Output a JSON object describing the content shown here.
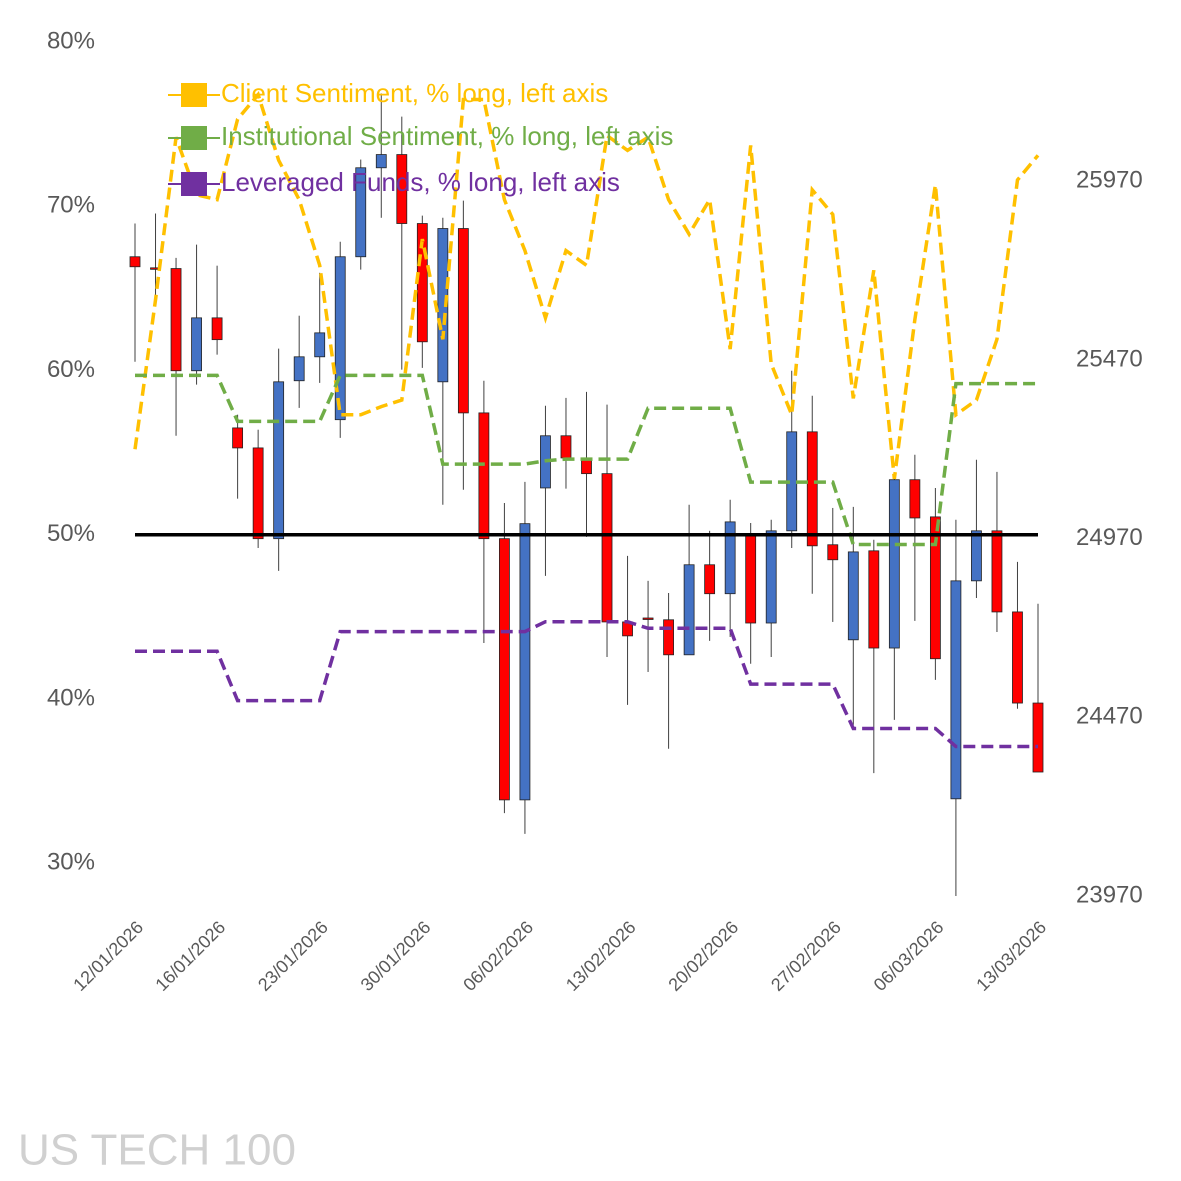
{
  "chart_data": {
    "type": "candlestick",
    "watermark": "US TECH 100",
    "categories": [
      "12/01/2026",
      null,
      null,
      null,
      "16/01/2026",
      null,
      null,
      null,
      null,
      "23/01/2026",
      null,
      null,
      null,
      null,
      "30/01/2026",
      null,
      null,
      null,
      null,
      "06/02/2026",
      null,
      null,
      null,
      null,
      "13/02/2026",
      null,
      null,
      null,
      null,
      "20/02/2026",
      null,
      null,
      null,
      null,
      "27/02/2026",
      null,
      null,
      null,
      null,
      "06/03/2026",
      null,
      null,
      null,
      null,
      "13/03/2026"
    ],
    "candles": {
      "axis": "y2",
      "up_color": "#4472c4",
      "down_color": "#ff0000",
      "open": [
        25759,
        25728,
        25726,
        25440,
        25588,
        25280,
        25224,
        24970,
        25412,
        25479,
        25303,
        25759,
        26008,
        26045,
        25852,
        25409,
        25838,
        25322,
        24970,
        24239,
        25112,
        25258,
        25191,
        25152,
        24737,
        24748,
        24743,
        24645,
        24897,
        24816,
        24981,
        24734,
        24992,
        25269,
        24953,
        24687,
        24936,
        24664,
        25135,
        25031,
        24242,
        24852,
        24992,
        24765,
        24510
      ],
      "high": [
        25852,
        25880,
        25756,
        25793,
        25734,
        25317,
        25275,
        25502,
        25594,
        25714,
        25801,
        26031,
        26216,
        26151,
        25874,
        25868,
        25916,
        25412,
        25070,
        25129,
        25342,
        25364,
        25381,
        25345,
        24922,
        24852,
        24818,
        25065,
        24992,
        25079,
        25014,
        25023,
        25440,
        25370,
        25056,
        25059,
        24967,
        25146,
        25205,
        25112,
        25023,
        25191,
        25157,
        24905,
        24788
      ],
      "low": [
        25465,
        25639,
        25258,
        25401,
        25485,
        25082,
        24944,
        24880,
        25336,
        25406,
        25252,
        25723,
        25868,
        25443,
        25448,
        25065,
        25107,
        24678,
        24202,
        24144,
        24866,
        25110,
        24975,
        24639,
        24505,
        24597,
        24382,
        24645,
        24684,
        24695,
        24620,
        24639,
        24944,
        24816,
        24737,
        24449,
        24314,
        24463,
        24740,
        24575,
        23970,
        24804,
        24709,
        24494,
        24317
      ],
      "close": [
        25731,
        25726,
        25440,
        25588,
        25527,
        25224,
        24970,
        25409,
        25479,
        25546,
        25759,
        26008,
        26045,
        25852,
        25521,
        25838,
        25322,
        24970,
        24239,
        25012,
        25258,
        25196,
        25152,
        24737,
        24698,
        24746,
        24645,
        24897,
        24816,
        25017,
        24734,
        24992,
        25269,
        24950,
        24911,
        24933,
        24664,
        25135,
        25028,
        24634,
        24852,
        24992,
        24765,
        24510,
        24317
      ]
    },
    "series": [
      {
        "name": "Client Sentiment, % long, left axis",
        "color": "#ffc000",
        "axis": "y",
        "values": [
          55.2,
          64.3,
          74.2,
          70.7,
          70.4,
          75.3,
          76.8,
          72.8,
          70.4,
          66.4,
          57.3,
          57.3,
          57.8,
          58.2,
          68.0,
          61.9,
          76.5,
          76.5,
          70.4,
          67.3,
          63.2,
          67.3,
          66.4,
          74.3,
          73.4,
          74.2,
          70.4,
          68.3,
          70.4,
          61.3,
          73.7,
          60.4,
          57.3,
          71.0,
          69.5,
          58.3,
          66.1,
          53.4,
          63.1,
          71.3,
          57.3,
          58.2,
          61.9,
          71.6,
          73.1
        ]
      },
      {
        "name": "Institutional Sentiment, % long, left axis",
        "color": "#70ad47",
        "axis": "y",
        "values": [
          59.7,
          59.7,
          59.7,
          59.7,
          59.7,
          56.9,
          56.9,
          56.9,
          56.9,
          56.9,
          59.7,
          59.7,
          59.7,
          59.7,
          59.7,
          54.3,
          54.3,
          54.3,
          54.3,
          54.3,
          54.5,
          54.6,
          54.6,
          54.6,
          54.6,
          57.7,
          57.7,
          57.7,
          57.7,
          57.7,
          53.2,
          53.2,
          53.2,
          53.2,
          53.2,
          49.4,
          49.4,
          49.4,
          49.4,
          49.4,
          59.2,
          59.2,
          59.2,
          59.2,
          59.2
        ]
      },
      {
        "name": "Leveraged Funds, % long, left axis",
        "color": "#7030a0",
        "axis": "y",
        "values": [
          42.9,
          42.9,
          42.9,
          42.9,
          42.9,
          39.9,
          39.9,
          39.9,
          39.9,
          39.9,
          44.1,
          44.1,
          44.1,
          44.1,
          44.1,
          44.1,
          44.1,
          44.1,
          44.1,
          44.1,
          44.7,
          44.7,
          44.7,
          44.7,
          44.7,
          44.3,
          44.3,
          44.3,
          44.3,
          44.3,
          40.9,
          40.9,
          40.9,
          40.9,
          40.9,
          38.2,
          38.2,
          38.2,
          38.2,
          38.2,
          37.1,
          37.1,
          37.1,
          37.1,
          37.1
        ]
      }
    ],
    "hline": {
      "value": 50,
      "color": "#000000"
    },
    "ylim": [
      28,
      80
    ],
    "yticks": [
      {
        "value": 30,
        "label": "30%"
      },
      {
        "value": 40,
        "label": "40%"
      },
      {
        "value": 50,
        "label": "50%"
      },
      {
        "value": 60,
        "label": "60%"
      },
      {
        "value": 70,
        "label": "70%"
      },
      {
        "value": 80,
        "label": "80%"
      }
    ],
    "y2lim": [
      23970,
      26360
    ],
    "y2ticks": [
      23970,
      24470,
      24970,
      25470,
      25970
    ],
    "legend": "top-left",
    "grid": false
  }
}
